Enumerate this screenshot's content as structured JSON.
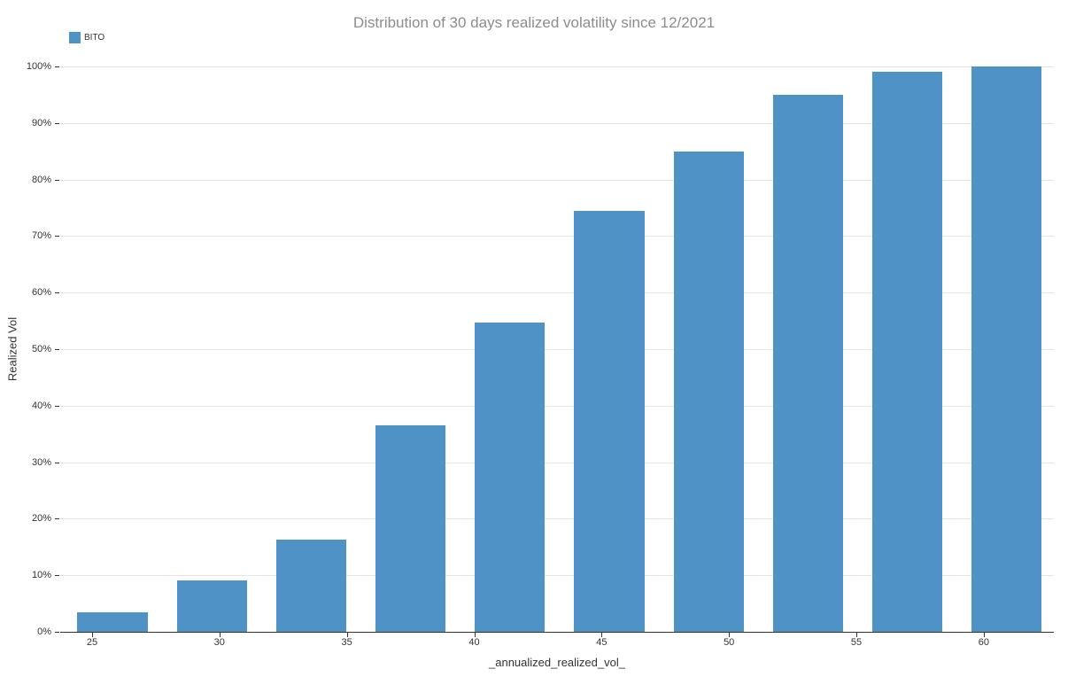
{
  "title": "Distribution of 30 days realized volatility since 12/2021",
  "legend": {
    "label": "BITO",
    "color": "#4e92c6"
  },
  "colors": {
    "bar": "#4e92c6",
    "grid": "#e5e5e5",
    "axis": "#333333",
    "title_text": "#8c8c8c"
  },
  "chart_data": {
    "type": "bar",
    "title": "Distribution of 30 days realized volatility since 12/2021",
    "xlabel": "_annualized_realized_vol_",
    "ylabel": "Realized Vol",
    "legend_position": "top-left",
    "grid": true,
    "xlim": [
      23.75,
      62.75
    ],
    "ylim": [
      0,
      100
    ],
    "xticks": [
      25,
      30,
      35,
      40,
      45,
      50,
      55,
      60
    ],
    "yticks": [
      0,
      10,
      20,
      30,
      40,
      50,
      60,
      70,
      80,
      90,
      100
    ],
    "ytick_suffix": "%",
    "bar_width": 2.75,
    "bar_color": "#4e92c6",
    "series": [
      {
        "name": "BITO",
        "x": [
          25.8,
          29.7,
          33.6,
          37.5,
          41.4,
          45.3,
          49.2,
          53.1,
          57.0,
          60.9
        ],
        "values": [
          3.5,
          9.1,
          16.3,
          36.5,
          54.7,
          74.5,
          85.0,
          95.0,
          99.0,
          100.0
        ]
      }
    ]
  }
}
